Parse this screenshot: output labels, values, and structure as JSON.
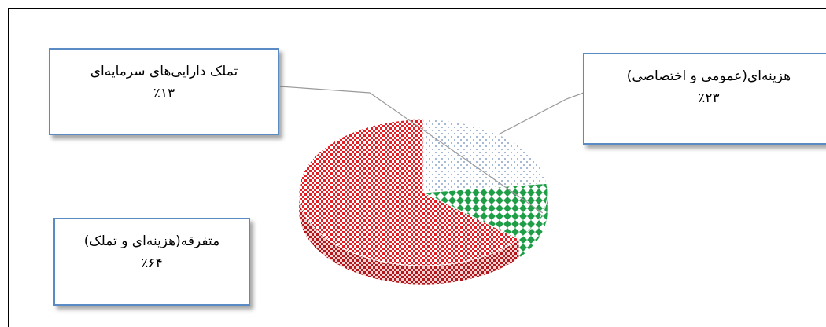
{
  "chart_data": {
    "type": "pie",
    "title": "",
    "slices": [
      {
        "label": "هزینه‌ای(عمومی و اختصاصی)",
        "value": 23,
        "value_label": "٪۲۳",
        "color": "#b8c7dc",
        "pattern": "dots"
      },
      {
        "label": "تملک دارایی‌های سرمایه‌ای",
        "value": 13,
        "value_label": "٪۱۳",
        "color": "#1f9e48",
        "pattern": "diamonds"
      },
      {
        "label": "متفرقه(هزینه‌ای و تملک)",
        "value": 64,
        "value_label": "٪۶۴",
        "color": "#e31e24",
        "pattern": "checker"
      }
    ],
    "legend": "none",
    "style": "3d-tilted"
  }
}
